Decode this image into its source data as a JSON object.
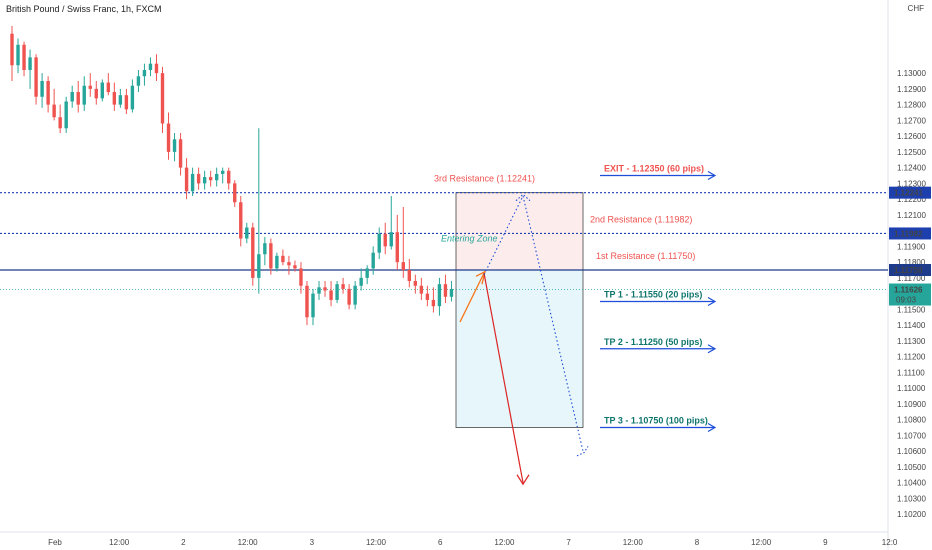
{
  "chart_data": {
    "type": "candlestick",
    "title": "British Pound / Swiss Franc, 1h, FXCM",
    "currency": "CHF",
    "ylim": [
      1.1015,
      1.1335
    ],
    "y_ticks": [
      "1.13000",
      "1.12900",
      "1.12800",
      "1.12700",
      "1.12600",
      "1.12500",
      "1.12400",
      "1.12300",
      "1.12200",
      "1.12100",
      "1.12000",
      "1.11900",
      "1.11800",
      "1.11700",
      "1.11600",
      "1.11500",
      "1.11400",
      "1.11300",
      "1.11200",
      "1.11100",
      "1.11000",
      "1.10900",
      "1.10800",
      "1.10700",
      "1.10600",
      "1.10500",
      "1.10400",
      "1.10300",
      "1.10200"
    ],
    "x_ticks": [
      "Feb",
      "12:00",
      "2",
      "12:00",
      "3",
      "12:00",
      "6",
      "12:00",
      "7",
      "12:00",
      "8",
      "12:00",
      "9",
      "12:0"
    ],
    "up_color": "#26a69a",
    "down_color": "#ef5350",
    "candles": [
      [
        1.1325,
        1.133,
        1.1295,
        1.1305
      ],
      [
        1.1305,
        1.1322,
        1.13,
        1.1318
      ],
      [
        1.1318,
        1.132,
        1.1298,
        1.1302
      ],
      [
        1.1302,
        1.1315,
        1.129,
        1.131
      ],
      [
        1.131,
        1.1312,
        1.128,
        1.1285
      ],
      [
        1.1285,
        1.13,
        1.1278,
        1.1295
      ],
      [
        1.1295,
        1.1298,
        1.1275,
        1.128
      ],
      [
        1.128,
        1.129,
        1.127,
        1.1272
      ],
      [
        1.1272,
        1.128,
        1.1262,
        1.1265
      ],
      [
        1.1265,
        1.1285,
        1.1262,
        1.1282
      ],
      [
        1.1282,
        1.1292,
        1.1278,
        1.1288
      ],
      [
        1.1288,
        1.1295,
        1.1275,
        1.128
      ],
      [
        1.128,
        1.1298,
        1.1276,
        1.1292
      ],
      [
        1.1292,
        1.13,
        1.1285,
        1.129
      ],
      [
        1.129,
        1.1295,
        1.128,
        1.1284
      ],
      [
        1.1284,
        1.1296,
        1.1282,
        1.1294
      ],
      [
        1.1294,
        1.13,
        1.1286,
        1.1288
      ],
      [
        1.1288,
        1.1294,
        1.1276,
        1.128
      ],
      [
        1.128,
        1.129,
        1.1278,
        1.1286
      ],
      [
        1.1286,
        1.129,
        1.1274,
        1.1277
      ],
      [
        1.1277,
        1.1296,
        1.1275,
        1.1292
      ],
      [
        1.1292,
        1.1302,
        1.1288,
        1.1298
      ],
      [
        1.1298,
        1.1306,
        1.1292,
        1.1302
      ],
      [
        1.1302,
        1.131,
        1.1298,
        1.1306
      ],
      [
        1.1306,
        1.1312,
        1.1295,
        1.13
      ],
      [
        1.13,
        1.1304,
        1.1262,
        1.1268
      ],
      [
        1.1268,
        1.1275,
        1.1245,
        1.125
      ],
      [
        1.125,
        1.1262,
        1.1244,
        1.1258
      ],
      [
        1.1258,
        1.1262,
        1.1235,
        1.124
      ],
      [
        1.124,
        1.1246,
        1.122,
        1.1225
      ],
      [
        1.1225,
        1.124,
        1.1222,
        1.1236
      ],
      [
        1.1236,
        1.124,
        1.1226,
        1.123
      ],
      [
        1.123,
        1.1238,
        1.1226,
        1.1234
      ],
      [
        1.1234,
        1.1238,
        1.1228,
        1.1232
      ],
      [
        1.1232,
        1.124,
        1.1228,
        1.1236
      ],
      [
        1.1236,
        1.124,
        1.123,
        1.1238
      ],
      [
        1.1238,
        1.124,
        1.1226,
        1.123
      ],
      [
        1.123,
        1.1232,
        1.1215,
        1.1218
      ],
      [
        1.1218,
        1.1222,
        1.119,
        1.1195
      ],
      [
        1.1195,
        1.1205,
        1.1192,
        1.1202
      ],
      [
        1.1202,
        1.1205,
        1.1165,
        1.117
      ],
      [
        1.117,
        1.1265,
        1.116,
        1.1185
      ],
      [
        1.1185,
        1.1196,
        1.1178,
        1.1192
      ],
      [
        1.1192,
        1.1195,
        1.1172,
        1.1176
      ],
      [
        1.1176,
        1.1186,
        1.1174,
        1.1184
      ],
      [
        1.1184,
        1.1188,
        1.1178,
        1.118
      ],
      [
        1.118,
        1.1184,
        1.1172,
        1.1178
      ],
      [
        1.1178,
        1.1181,
        1.1174,
        1.1176
      ],
      [
        1.1176,
        1.118,
        1.116,
        1.1165
      ],
      [
        1.1165,
        1.1168,
        1.114,
        1.1145
      ],
      [
        1.1145,
        1.1163,
        1.114,
        1.116
      ],
      [
        1.116,
        1.1168,
        1.1156,
        1.1164
      ],
      [
        1.1164,
        1.1168,
        1.1158,
        1.1162
      ],
      [
        1.1162,
        1.1168,
        1.1152,
        1.1156
      ],
      [
        1.1156,
        1.1168,
        1.1154,
        1.1166
      ],
      [
        1.1166,
        1.117,
        1.116,
        1.1163
      ],
      [
        1.1163,
        1.1166,
        1.115,
        1.1153
      ],
      [
        1.1153,
        1.1168,
        1.115,
        1.1165
      ],
      [
        1.1165,
        1.1176,
        1.1162,
        1.117
      ],
      [
        1.117,
        1.1178,
        1.1166,
        1.1176
      ],
      [
        1.1176,
        1.119,
        1.1172,
        1.1186
      ],
      [
        1.1186,
        1.1202,
        1.1182,
        1.1198
      ],
      [
        1.1198,
        1.1205,
        1.1185,
        1.119
      ],
      [
        1.119,
        1.1222,
        1.1188,
        1.1199
      ],
      [
        1.1199,
        1.121,
        1.1175,
        1.118
      ],
      [
        1.118,
        1.1215,
        1.117,
        1.1175
      ],
      [
        1.1175,
        1.1182,
        1.1164,
        1.1168
      ],
      [
        1.1168,
        1.1172,
        1.116,
        1.1165
      ],
      [
        1.1165,
        1.117,
        1.1156,
        1.116
      ],
      [
        1.116,
        1.1165,
        1.1152,
        1.1156
      ],
      [
        1.1156,
        1.1164,
        1.1148,
        1.1152
      ],
      [
        1.1152,
        1.117,
        1.1146,
        1.1166
      ],
      [
        1.1166,
        1.1172,
        1.1154,
        1.1158
      ],
      [
        1.1158,
        1.1168,
        1.1155,
        1.1163
      ]
    ],
    "levels": [
      {
        "name": "3rd Resistance",
        "value": 1.12241,
        "label": "3rd Resistance (1.12241)",
        "tag": "1.12241",
        "color": "#1e40af",
        "style": "dotted"
      },
      {
        "name": "2nd Resistance",
        "value": 1.11982,
        "label": "2nd Resistance (1.11982)",
        "tag": "1.11982",
        "color": "#1e40af",
        "style": "dotted"
      },
      {
        "name": "1st Resistance",
        "value": 1.1175,
        "label": "1st Resistance  (1.11750)",
        "tag": "1.11750",
        "color": "#1e3a8a",
        "style": "solid"
      }
    ],
    "current_price": {
      "value": 1.11626,
      "tag": "1.11626",
      "countdown": "09:03",
      "color": "#26a69a"
    },
    "targets": [
      {
        "label": "EXIT - 1.12350 (60 pips)",
        "value": 1.1235,
        "color": "#ef5350"
      },
      {
        "label": "TP 1 - 1.11550 (20 pips)",
        "value": 1.1155,
        "color": "#0f766e"
      },
      {
        "label": "TP 2 - 1.11250 (50 pips)",
        "value": 1.1125,
        "color": "#0f766e"
      },
      {
        "label": "TP 3 - 1.10750 (100 pips)",
        "value": 1.1075,
        "color": "#0f766e"
      }
    ],
    "zone_label": "Entering Zone",
    "position": {
      "top": 1.12241,
      "entry": 1.1175,
      "bottom": 1.1075,
      "risk_fill": "#fdecec",
      "reward_fill": "#e6f6fa"
    }
  }
}
